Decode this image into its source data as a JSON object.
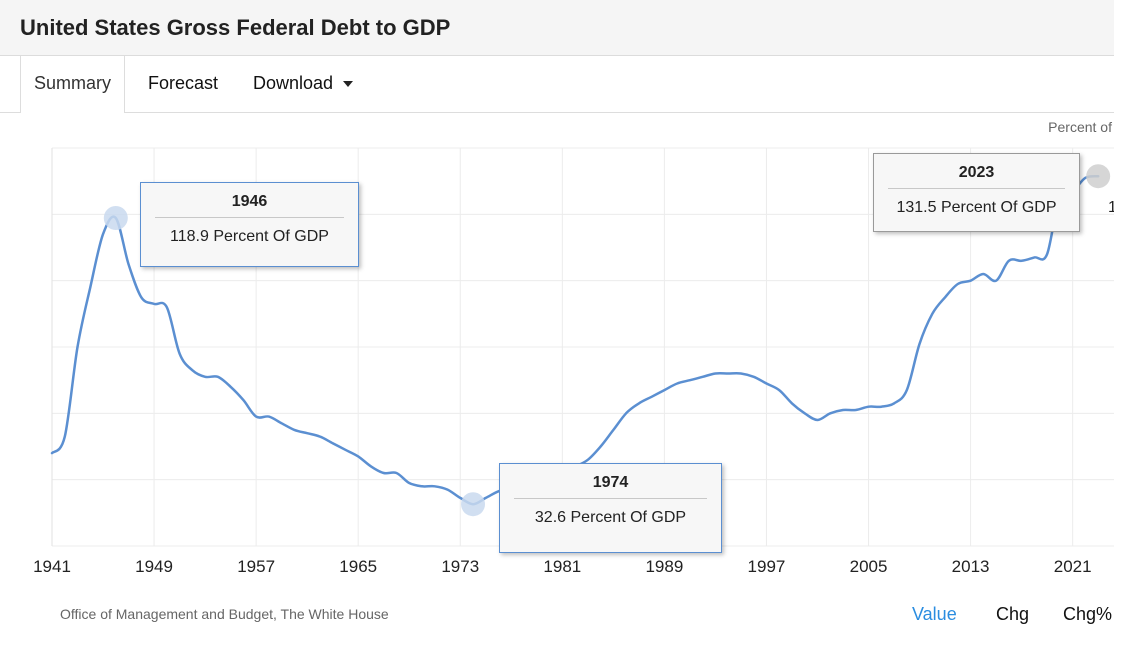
{
  "header": {
    "title": "United States Gross Federal Debt to GDP"
  },
  "tabs": [
    {
      "label": "Summary"
    },
    {
      "label": "Forecast"
    },
    {
      "label": "Download"
    }
  ],
  "chart_data": {
    "type": "line",
    "unit_label": "Percent of",
    "x_ticks": [
      "1941",
      "1949",
      "1957",
      "1965",
      "1973",
      "1981",
      "1989",
      "1997",
      "2005",
      "2013",
      "2021"
    ],
    "xlim": [
      1941,
      2023.3
    ],
    "ylim": [
      20,
      140
    ],
    "grid": true,
    "series_color": "#5b8fd1",
    "series": [
      {
        "x": [
          1941,
          1942,
          1943,
          1944,
          1945,
          1946,
          1947,
          1948,
          1949,
          1950,
          1951,
          1952,
          1953,
          1954,
          1955,
          1956,
          1957,
          1958,
          1959,
          1960,
          1961,
          1962,
          1963,
          1964,
          1965,
          1966,
          1967,
          1968,
          1969,
          1970,
          1971,
          1972,
          1973,
          1974,
          1975,
          1976,
          1977,
          1978,
          1979,
          1980,
          1981,
          1982,
          1983,
          1984,
          1985,
          1986,
          1987,
          1988,
          1989,
          1990,
          1991,
          1992,
          1993,
          1994,
          1995,
          1996,
          1997,
          1998,
          1999,
          2000,
          2001,
          2002,
          2003,
          2004,
          2005,
          2006,
          2007,
          2008,
          2009,
          2010,
          2011,
          2012,
          2013,
          2014,
          2015,
          2016,
          2017,
          2018,
          2019,
          2020,
          2021,
          2022,
          2023
        ],
        "values": [
          48,
          53,
          80,
          98,
          114,
          118.9,
          105,
          95,
          93,
          92,
          78,
          73,
          71,
          71,
          68,
          64,
          59,
          59,
          57,
          55,
          54,
          53,
          51,
          49,
          47,
          44,
          42,
          42,
          39,
          38,
          38,
          37,
          34.5,
          32.6,
          34.5,
          36.5,
          37.5,
          38.5,
          40,
          42,
          43,
          44,
          46,
          50,
          55,
          60,
          63,
          65,
          67,
          69,
          70,
          71,
          72,
          72,
          72,
          71,
          69,
          67,
          63,
          60,
          58,
          60,
          61,
          61,
          62,
          62,
          63,
          67,
          81,
          90,
          95,
          99,
          100,
          102,
          100,
          106,
          106,
          107,
          108,
          126,
          127,
          131,
          131.5
        ]
      }
    ],
    "annotations": [
      {
        "year": "1946",
        "value": "118.9 Percent Of GDP"
      },
      {
        "year": "1974",
        "value": "32.6 Percent Of GDP"
      },
      {
        "year": "2023",
        "value": "131.5 Percent Of GDP"
      }
    ],
    "partial_label": "1"
  },
  "footer": {
    "source": "Office of Management and Budget, The White House",
    "toggles": [
      "Value",
      "Chg",
      "Chg%"
    ],
    "active_toggle": "Value",
    "active_color": "#2b8de0"
  }
}
